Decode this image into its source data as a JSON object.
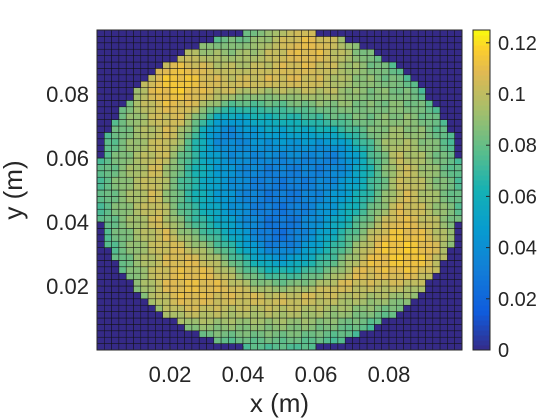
{
  "chart_data": {
    "type": "heatmap",
    "title": "",
    "xlabel": "x (m)",
    "ylabel": "y (m)",
    "xlim": [
      0,
      0.1
    ],
    "ylim": [
      0,
      0.1
    ],
    "grid_cells": [
      50,
      50
    ],
    "cell_edges": "black",
    "colormap": "parula",
    "clim": [
      0,
      0.125
    ],
    "x_ticks": [
      0.02,
      0.04,
      0.06,
      0.08
    ],
    "x_tick_labels": [
      "0.02",
      "0.04",
      "0.06",
      "0.08"
    ],
    "y_ticks": [
      0.02,
      0.04,
      0.06,
      0.08
    ],
    "y_tick_labels": [
      "0.02",
      "0.04",
      "0.06",
      "0.08"
    ],
    "colorbar_ticks": [
      0,
      0.02,
      0.04,
      0.06,
      0.08,
      0.1,
      0.12
    ],
    "colorbar_tick_labels": [
      "0",
      "0.02",
      "0.04",
      "0.06",
      "0.08",
      "0.1",
      "0.12"
    ],
    "field": {
      "domain": "disk",
      "center": [
        0.05,
        0.05
      ],
      "radius": 0.05,
      "outside_value": 0,
      "center_value": 0.03,
      "ring_value": 0.105,
      "ring_radius": 0.034,
      "edge_value": 0.075,
      "hotspots": [
        {
          "x": 0.022,
          "y": 0.083,
          "value": 0.115
        },
        {
          "x": 0.058,
          "y": 0.094,
          "value": 0.11
        },
        {
          "x": 0.085,
          "y": 0.03,
          "value": 0.115
        },
        {
          "x": 0.025,
          "y": 0.02,
          "value": 0.11
        },
        {
          "x": 0.075,
          "y": 0.075,
          "value": 0.085
        }
      ],
      "low_spots": [
        {
          "x": 0.035,
          "y": 0.068,
          "value": 0.015
        },
        {
          "x": 0.05,
          "y": 0.035,
          "value": 0.015
        },
        {
          "x": 0.065,
          "y": 0.06,
          "value": 0.02
        }
      ]
    }
  }
}
